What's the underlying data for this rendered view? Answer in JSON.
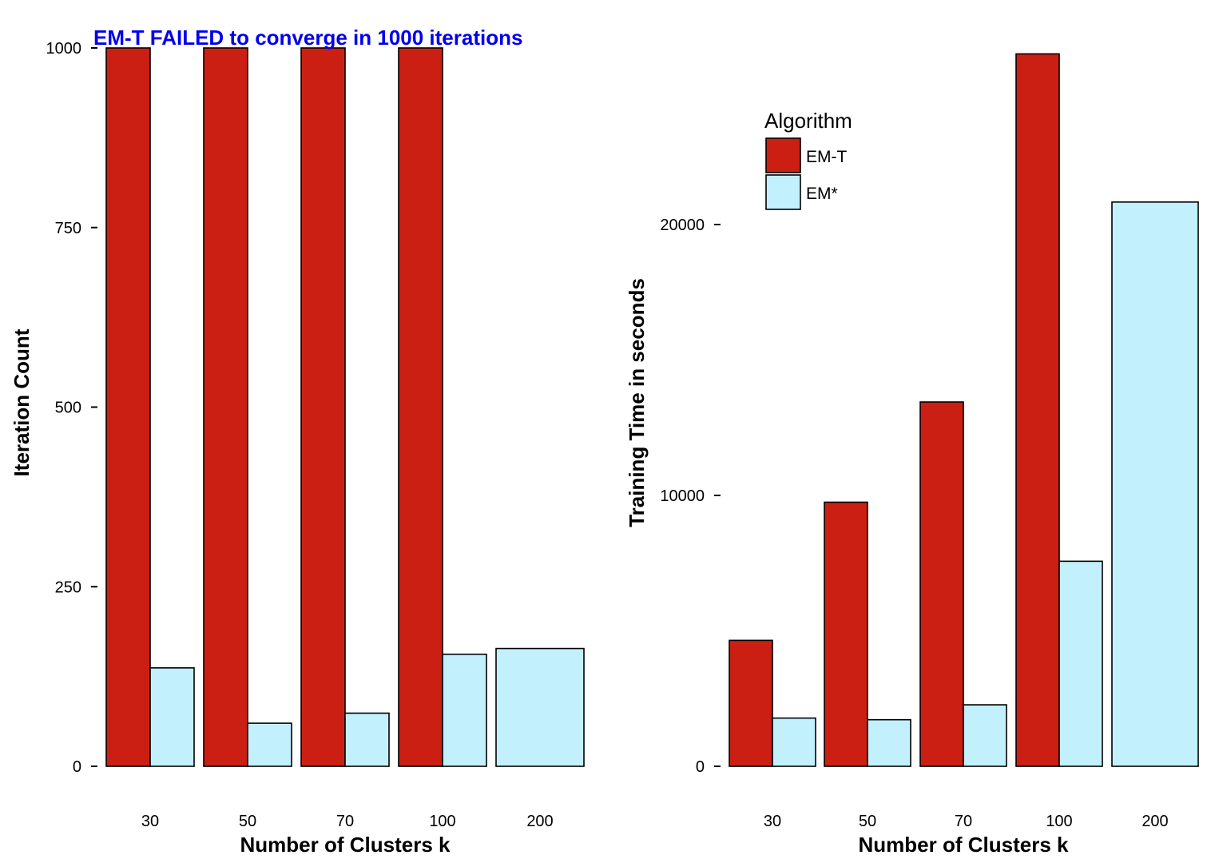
{
  "colors": {
    "EM-T": "#cc1f13",
    "EM*": "#c2f0fc",
    "annotation": "#0000ee",
    "bar_outline": "#000000"
  },
  "legend": {
    "title": "Algorithm",
    "items": [
      "EM-T",
      "EM*"
    ]
  },
  "chart_data": [
    {
      "type": "bar",
      "title": "",
      "annotation": "EM-T FAILED to converge in 1000 iterations",
      "xlabel": "Number of Clusters k",
      "ylabel": "Iteration Count",
      "categories": [
        "30",
        "50",
        "70",
        "100",
        "200"
      ],
      "ylim": [
        0,
        1000
      ],
      "yticks": [
        0,
        250,
        500,
        750,
        1000
      ],
      "series": [
        {
          "name": "EM-T",
          "values": [
            1000,
            1000,
            1000,
            1000,
            null
          ]
        },
        {
          "name": "EM*",
          "values": [
            137,
            60,
            74,
            156,
            164
          ]
        }
      ]
    },
    {
      "type": "bar",
      "title": "",
      "xlabel": "Number of Clusters k",
      "ylabel": "Training Time in seconds",
      "categories": [
        "30",
        "50",
        "70",
        "100",
        "200"
      ],
      "ylim": [
        0,
        27000
      ],
      "yticks": [
        0,
        10000,
        20000
      ],
      "series": [
        {
          "name": "EM-T",
          "values": [
            4650,
            9750,
            13450,
            26300,
            null
          ]
        },
        {
          "name": "EM*",
          "values": [
            1780,
            1720,
            2270,
            7570,
            20830
          ]
        }
      ]
    }
  ]
}
